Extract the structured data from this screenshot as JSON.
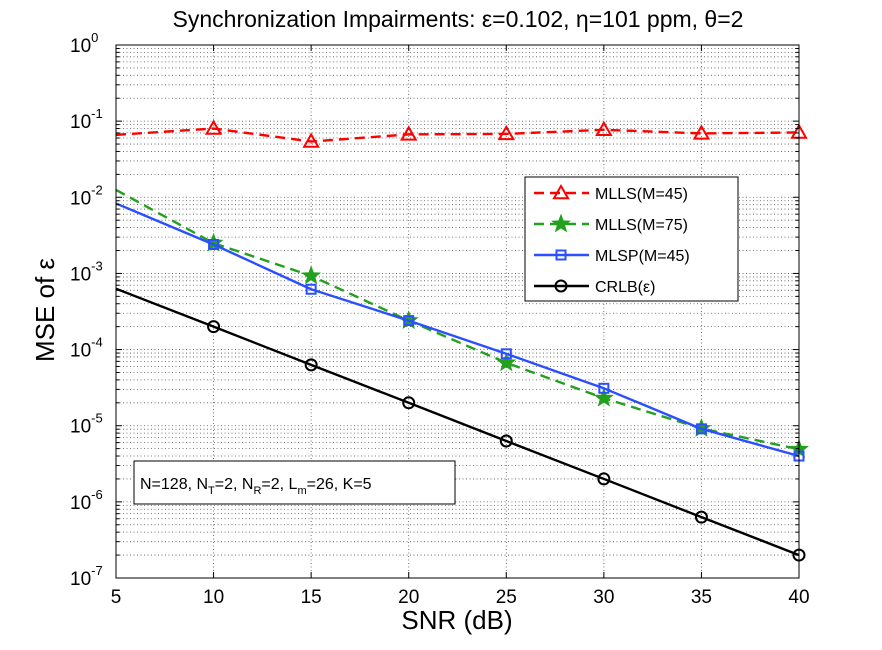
{
  "chart_data": {
    "type": "line",
    "title": "Synchronization Impairments: ε=0.102, η=101 ppm, θ=2",
    "xlabel": "SNR (dB)",
    "ylabel_main": "MSE of ",
    "ylabel_symbol": "ε",
    "xlim": [
      5,
      40
    ],
    "ylim": [
      1e-07,
      1
    ],
    "yscale": "log",
    "grid": true,
    "x_ticks": [
      5,
      10,
      15,
      20,
      25,
      30,
      35,
      40
    ],
    "y_ticks": [
      {
        "value": 1,
        "base": "10",
        "exp": "0"
      },
      {
        "value": 0.1,
        "base": "10",
        "exp": "-1"
      },
      {
        "value": 0.01,
        "base": "10",
        "exp": "-2"
      },
      {
        "value": 0.001,
        "base": "10",
        "exp": "-3"
      },
      {
        "value": 0.0001,
        "base": "10",
        "exp": "-4"
      },
      {
        "value": 1e-05,
        "base": "10",
        "exp": "-5"
      },
      {
        "value": 1e-06,
        "base": "10",
        "exp": "-6"
      },
      {
        "value": 1e-07,
        "base": "10",
        "exp": "-7"
      }
    ],
    "legend_position": "right-middle",
    "series": [
      {
        "name": "MLLS(M=45)",
        "color": "#ff0000",
        "dash": "dashed",
        "marker": "triangle",
        "line_x": [
          5,
          10,
          15,
          20,
          25,
          30,
          35,
          40
        ],
        "line_y": [
          0.066,
          0.08,
          0.054,
          0.067,
          0.068,
          0.077,
          0.069,
          0.071
        ],
        "marker_x": [
          10,
          15,
          20,
          25,
          30,
          35,
          40
        ],
        "marker_y": [
          0.08,
          0.054,
          0.067,
          0.068,
          0.077,
          0.069,
          0.071
        ]
      },
      {
        "name": "MLLS(M=75)",
        "color": "#22a01e",
        "dash": "dashed",
        "marker": "star",
        "line_x": [
          5,
          10,
          15,
          20,
          25,
          30,
          35,
          40
        ],
        "line_y": [
          0.0125,
          0.0025,
          0.00093,
          0.00024,
          6.7e-05,
          2.3e-05,
          9.2e-06,
          4.9e-06
        ],
        "marker_x": [
          10,
          15,
          20,
          25,
          30,
          35,
          40
        ],
        "marker_y": [
          0.0025,
          0.00093,
          0.00024,
          6.7e-05,
          2.3e-05,
          9.2e-06,
          4.9e-06
        ]
      },
      {
        "name": "MLSP(M=45)",
        "color": "#2b4fff",
        "dash": "solid",
        "marker": "square",
        "line_x": [
          5,
          10,
          15,
          20,
          25,
          30,
          35,
          40
        ],
        "line_y": [
          0.0083,
          0.0024,
          0.00062,
          0.00024,
          8.8e-05,
          3.1e-05,
          9.1e-06,
          4e-06
        ],
        "marker_x": [
          10,
          15,
          20,
          25,
          30,
          35,
          40
        ],
        "marker_y": [
          0.0024,
          0.00062,
          0.00024,
          8.8e-05,
          3.1e-05,
          9.1e-06,
          4e-06
        ]
      },
      {
        "name": "CRLB(ε)",
        "color": "#000000",
        "dash": "solid",
        "marker": "circle",
        "line_x": [
          5,
          10,
          15,
          20,
          25,
          30,
          35,
          40
        ],
        "line_y": [
          0.00063,
          0.0002,
          6.3e-05,
          2e-05,
          6.3e-06,
          2e-06,
          6.3e-07,
          2e-07
        ],
        "marker_x": [
          10,
          15,
          20,
          25,
          30,
          35,
          40
        ],
        "marker_y": [
          0.0002,
          6.3e-05,
          2e-05,
          6.3e-06,
          2e-06,
          6.3e-07,
          2e-07
        ]
      }
    ],
    "annotation": [
      {
        "t": "N=128, N",
        "s": ""
      },
      {
        "t": "T",
        "s": "sub"
      },
      {
        "t": "=2, N",
        "s": ""
      },
      {
        "t": "R",
        "s": "sub"
      },
      {
        "t": "=2, L",
        "s": ""
      },
      {
        "t": "m",
        "s": "sub"
      },
      {
        "t": "=26, K=5",
        "s": ""
      }
    ]
  }
}
